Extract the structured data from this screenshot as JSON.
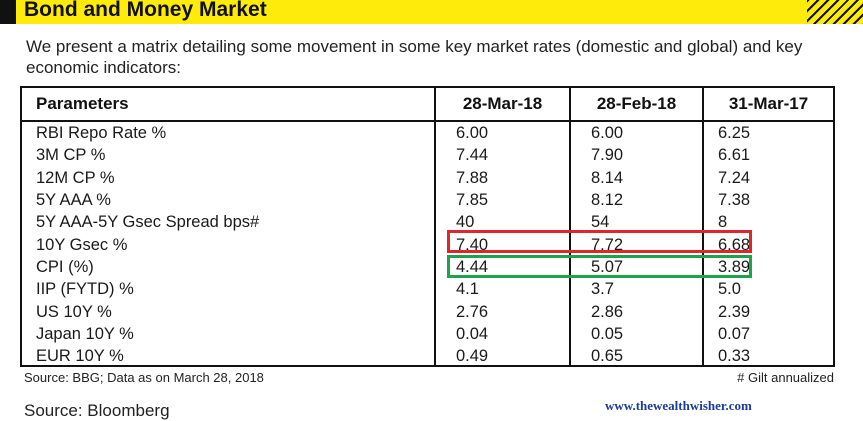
{
  "header": {
    "title": "Bond and Money Market"
  },
  "intro": "We present a matrix detailing some movement in some key market rates (domestic and global) and key economic indicators:",
  "table": {
    "columns": [
      "Parameters",
      "28-Mar-18",
      "28-Feb-18",
      "31-Mar-17"
    ],
    "rows": [
      [
        "RBI Repo Rate %",
        "6.00",
        "6.00",
        "6.25"
      ],
      [
        "3M CP %",
        "7.44",
        "7.90",
        "6.61"
      ],
      [
        "12M CP %",
        "7.88",
        "8.14",
        "7.24"
      ],
      [
        "5Y AAA %",
        "7.85",
        "8.12",
        "7.38"
      ],
      [
        "5Y AAA-5Y Gsec Spread bps#",
        "40",
        "54",
        "8"
      ],
      [
        "10Y Gsec %",
        "7.40",
        "7.72",
        "6.68"
      ],
      [
        "CPI (%)",
        "4.44",
        "5.07",
        "3.89"
      ],
      [
        "IIP (FYTD) %",
        "4.1",
        "3.7",
        "5.0"
      ],
      [
        "US 10Y %",
        "2.76",
        "2.86",
        "2.39"
      ],
      [
        "Japan 10Y %",
        "0.04",
        "0.05",
        "0.07"
      ],
      [
        "EUR 10Y %",
        "0.49",
        "0.65",
        "0.33"
      ]
    ]
  },
  "highlights": {
    "red_row": "10Y Gsec %",
    "green_row": "CPI (%)",
    "red_color": "#e0262a",
    "green_color": "#1fa34a"
  },
  "footnotes": {
    "source_left": "Source: BBG; Data as on March 28, 2018",
    "gilt": "# Gilt annualized"
  },
  "source": "Source: Bloomberg",
  "website": "www.thewealthwisher.com",
  "colors": {
    "banner": "#ffeb0a",
    "text": "#111111",
    "website": "#1a3c9c"
  }
}
